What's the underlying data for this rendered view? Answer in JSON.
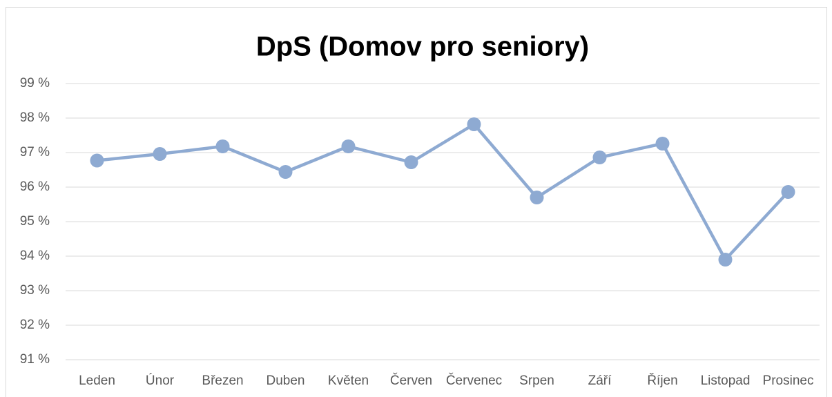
{
  "chart_data": {
    "type": "line",
    "title": "DpS (Domov pro seniory)",
    "categories": [
      "Leden",
      "Únor",
      "Březen",
      "Duben",
      "Květen",
      "Červen",
      "Červenec",
      "Srpen",
      "Září",
      "Říjen",
      "Listopad",
      "Prosinec"
    ],
    "series": [
      {
        "color": "#8eaad2",
        "values": [
          96.77,
          96.96,
          97.18,
          96.44,
          97.18,
          96.72,
          97.82,
          95.7,
          96.86,
          97.26,
          93.9,
          95.86
        ]
      }
    ],
    "ylim": [
      91,
      99
    ],
    "yticks": [
      {
        "value": 91,
        "label": "91 %"
      },
      {
        "value": 92,
        "label": "92 %"
      },
      {
        "value": 93,
        "label": "93 %"
      },
      {
        "value": 94,
        "label": "94 %"
      },
      {
        "value": 95,
        "label": "95 %"
      },
      {
        "value": 96,
        "label": "96 %"
      },
      {
        "value": 97,
        "label": "97 %"
      },
      {
        "value": 98,
        "label": "98 %"
      },
      {
        "value": 99,
        "label": "99 %"
      }
    ],
    "grid": true
  }
}
